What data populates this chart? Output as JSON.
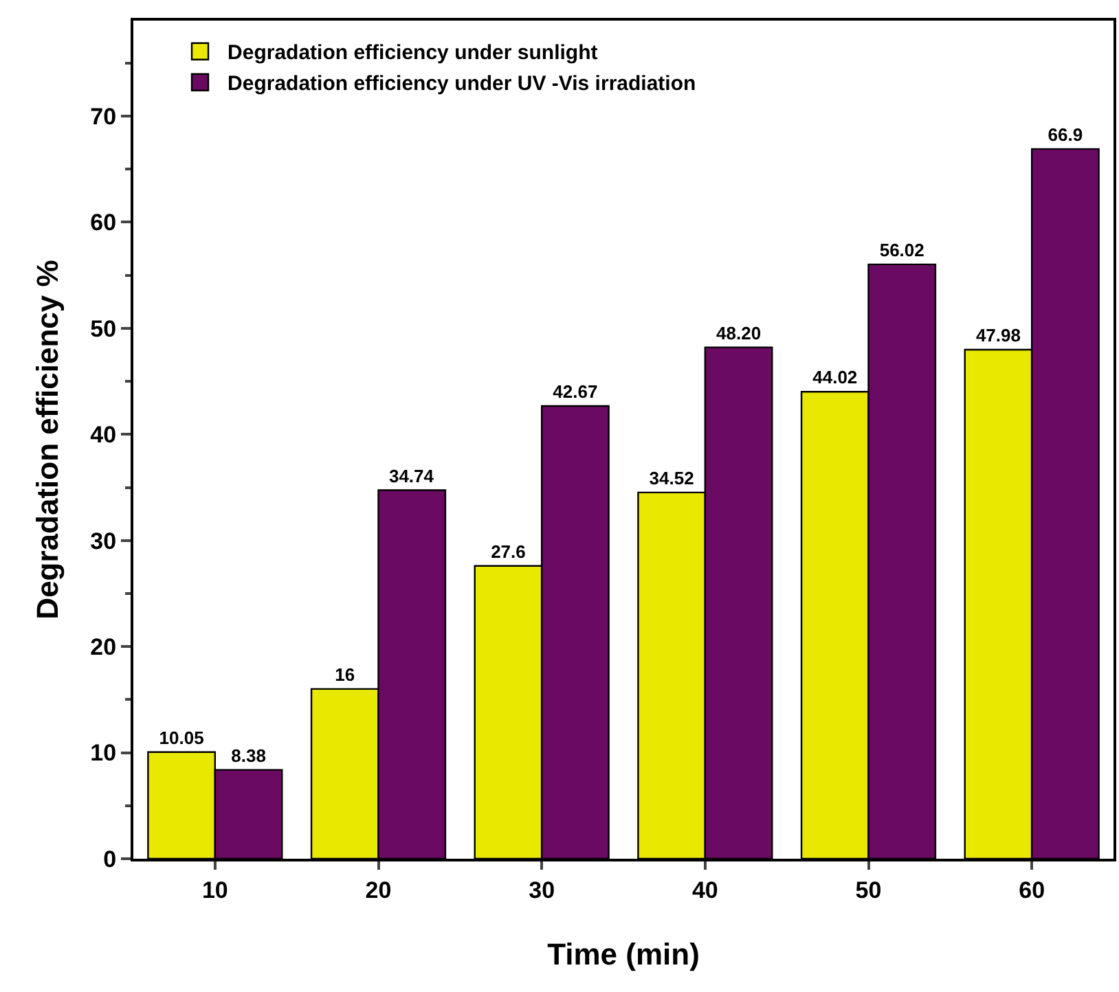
{
  "chart_data": {
    "type": "bar",
    "xlabel": "Time (min)",
    "ylabel": "Degradation efficiency %",
    "categories": [
      "10",
      "20",
      "30",
      "40",
      "50",
      "60"
    ],
    "series": [
      {
        "name": "Degradation efficiency under sunlight",
        "color": "#e8e800",
        "values": [
          10.05,
          16,
          27.6,
          34.52,
          44.02,
          47.98
        ],
        "value_labels": [
          "10.05",
          "16",
          "27.6",
          "34.52",
          "44.02",
          "47.98"
        ]
      },
      {
        "name": "Degradation efficiency under UV -Vis irradiation",
        "color": "#6b0a62",
        "values": [
          8.38,
          34.74,
          42.67,
          48.2,
          56.02,
          66.9
        ],
        "value_labels": [
          "8.38",
          "34.74",
          "42.67",
          "48.20",
          "56.02",
          "66.9"
        ]
      }
    ],
    "ylim": [
      0,
      79
    ],
    "yticks": [
      0,
      10,
      20,
      30,
      40,
      50,
      60,
      70
    ],
    "grid": false,
    "legend": "top left"
  }
}
